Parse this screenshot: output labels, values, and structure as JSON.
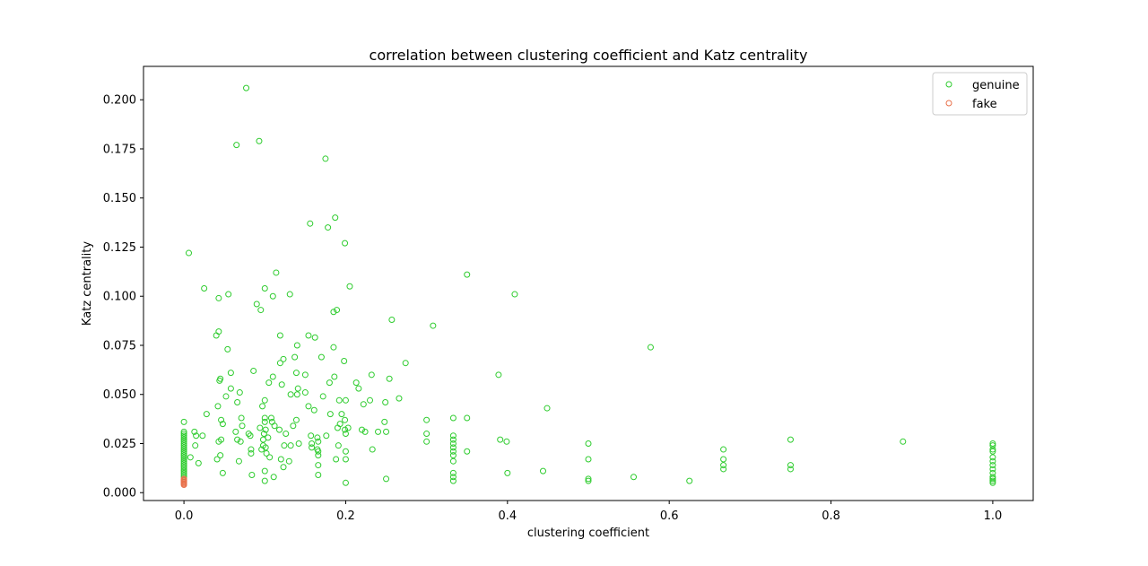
{
  "chart_data": {
    "type": "scatter",
    "title": "correlation between clustering coefficient and Katz centrality",
    "xlabel": "clustering coefficient",
    "ylabel": "Katz centrality",
    "xlim": [
      -0.05,
      1.05
    ],
    "ylim": [
      -0.004,
      0.217
    ],
    "x_ticks": [
      0.0,
      0.2,
      0.4,
      0.6,
      0.8,
      1.0
    ],
    "x_tick_labels": [
      "0.0",
      "0.2",
      "0.4",
      "0.6",
      "0.8",
      "1.0"
    ],
    "y_ticks": [
      0.0,
      0.025,
      0.05,
      0.075,
      0.1,
      0.125,
      0.15,
      0.175,
      0.2
    ],
    "y_tick_labels": [
      "0.000",
      "0.025",
      "0.050",
      "0.075",
      "0.100",
      "0.125",
      "0.150",
      "0.175",
      "0.200"
    ],
    "grid": false,
    "legend_position": "top-right",
    "marker": "hollow-circle",
    "series": [
      {
        "name": "genuine",
        "color": "#2ecc2e",
        "points": [
          [
            0.0,
            0.036
          ],
          [
            0.0,
            0.031
          ],
          [
            0.0,
            0.03
          ],
          [
            0.0,
            0.029
          ],
          [
            0.0,
            0.028
          ],
          [
            0.0,
            0.027
          ],
          [
            0.0,
            0.026
          ],
          [
            0.0,
            0.025
          ],
          [
            0.0,
            0.024
          ],
          [
            0.0,
            0.023
          ],
          [
            0.0,
            0.022
          ],
          [
            0.0,
            0.021
          ],
          [
            0.0,
            0.02
          ],
          [
            0.0,
            0.019
          ],
          [
            0.0,
            0.018
          ],
          [
            0.0,
            0.017
          ],
          [
            0.0,
            0.016
          ],
          [
            0.0,
            0.015
          ],
          [
            0.0,
            0.014
          ],
          [
            0.0,
            0.013
          ],
          [
            0.0,
            0.012
          ],
          [
            0.0,
            0.011
          ],
          [
            0.0,
            0.01
          ],
          [
            0.0,
            0.009
          ],
          [
            0.0,
            0.008
          ],
          [
            0.006,
            0.122
          ],
          [
            0.008,
            0.018
          ],
          [
            0.013,
            0.031
          ],
          [
            0.014,
            0.024
          ],
          [
            0.015,
            0.029
          ],
          [
            0.018,
            0.015
          ],
          [
            0.023,
            0.029
          ],
          [
            0.025,
            0.104
          ],
          [
            0.028,
            0.04
          ],
          [
            0.04,
            0.08
          ],
          [
            0.041,
            0.017
          ],
          [
            0.042,
            0.044
          ],
          [
            0.043,
            0.099
          ],
          [
            0.043,
            0.026
          ],
          [
            0.043,
            0.082
          ],
          [
            0.044,
            0.057
          ],
          [
            0.045,
            0.019
          ],
          [
            0.045,
            0.058
          ],
          [
            0.046,
            0.037
          ],
          [
            0.046,
            0.027
          ],
          [
            0.048,
            0.035
          ],
          [
            0.048,
            0.01
          ],
          [
            0.052,
            0.049
          ],
          [
            0.054,
            0.073
          ],
          [
            0.055,
            0.101
          ],
          [
            0.058,
            0.053
          ],
          [
            0.058,
            0.061
          ],
          [
            0.064,
            0.031
          ],
          [
            0.065,
            0.177
          ],
          [
            0.066,
            0.046
          ],
          [
            0.066,
            0.027
          ],
          [
            0.068,
            0.016
          ],
          [
            0.069,
            0.051
          ],
          [
            0.07,
            0.026
          ],
          [
            0.071,
            0.038
          ],
          [
            0.072,
            0.034
          ],
          [
            0.077,
            0.206
          ],
          [
            0.08,
            0.03
          ],
          [
            0.082,
            0.029
          ],
          [
            0.083,
            0.02
          ],
          [
            0.083,
            0.022
          ],
          [
            0.084,
            0.009
          ],
          [
            0.086,
            0.062
          ],
          [
            0.09,
            0.096
          ],
          [
            0.093,
            0.179
          ],
          [
            0.094,
            0.033
          ],
          [
            0.095,
            0.093
          ],
          [
            0.096,
            0.022
          ],
          [
            0.097,
            0.044
          ],
          [
            0.098,
            0.024
          ],
          [
            0.098,
            0.027
          ],
          [
            0.099,
            0.03
          ],
          [
            0.1,
            0.047
          ],
          [
            0.1,
            0.011
          ],
          [
            0.1,
            0.036
          ],
          [
            0.1,
            0.038
          ],
          [
            0.1,
            0.104
          ],
          [
            0.1,
            0.006
          ],
          [
            0.101,
            0.023
          ],
          [
            0.101,
            0.032
          ],
          [
            0.102,
            0.02
          ],
          [
            0.104,
            0.028
          ],
          [
            0.105,
            0.056
          ],
          [
            0.106,
            0.018
          ],
          [
            0.108,
            0.038
          ],
          [
            0.109,
            0.036
          ],
          [
            0.11,
            0.1
          ],
          [
            0.11,
            0.059
          ],
          [
            0.111,
            0.008
          ],
          [
            0.112,
            0.034
          ],
          [
            0.114,
            0.112
          ],
          [
            0.118,
            0.032
          ],
          [
            0.119,
            0.08
          ],
          [
            0.119,
            0.066
          ],
          [
            0.12,
            0.017
          ],
          [
            0.121,
            0.055
          ],
          [
            0.123,
            0.068
          ],
          [
            0.123,
            0.013
          ],
          [
            0.124,
            0.024
          ],
          [
            0.126,
            0.03
          ],
          [
            0.13,
            0.016
          ],
          [
            0.131,
            0.101
          ],
          [
            0.132,
            0.05
          ],
          [
            0.132,
            0.024
          ],
          [
            0.135,
            0.034
          ],
          [
            0.137,
            0.069
          ],
          [
            0.139,
            0.061
          ],
          [
            0.139,
            0.037
          ],
          [
            0.14,
            0.075
          ],
          [
            0.14,
            0.05
          ],
          [
            0.141,
            0.053
          ],
          [
            0.142,
            0.025
          ],
          [
            0.15,
            0.06
          ],
          [
            0.15,
            0.051
          ],
          [
            0.154,
            0.044
          ],
          [
            0.154,
            0.08
          ],
          [
            0.156,
            0.137
          ],
          [
            0.157,
            0.029
          ],
          [
            0.158,
            0.025
          ],
          [
            0.158,
            0.023
          ],
          [
            0.161,
            0.042
          ],
          [
            0.162,
            0.079
          ],
          [
            0.165,
            0.028
          ],
          [
            0.165,
            0.022
          ],
          [
            0.166,
            0.026
          ],
          [
            0.166,
            0.021
          ],
          [
            0.166,
            0.019
          ],
          [
            0.166,
            0.014
          ],
          [
            0.166,
            0.009
          ],
          [
            0.17,
            0.069
          ],
          [
            0.172,
            0.049
          ],
          [
            0.175,
            0.17
          ],
          [
            0.176,
            0.029
          ],
          [
            0.178,
            0.135
          ],
          [
            0.18,
            0.056
          ],
          [
            0.181,
            0.04
          ],
          [
            0.185,
            0.092
          ],
          [
            0.185,
            0.074
          ],
          [
            0.186,
            0.059
          ],
          [
            0.187,
            0.14
          ],
          [
            0.188,
            0.017
          ],
          [
            0.189,
            0.093
          ],
          [
            0.19,
            0.033
          ],
          [
            0.191,
            0.024
          ],
          [
            0.192,
            0.047
          ],
          [
            0.193,
            0.035
          ],
          [
            0.195,
            0.04
          ],
          [
            0.198,
            0.067
          ],
          [
            0.199,
            0.127
          ],
          [
            0.199,
            0.037
          ],
          [
            0.199,
            0.032
          ],
          [
            0.2,
            0.03
          ],
          [
            0.2,
            0.021
          ],
          [
            0.2,
            0.047
          ],
          [
            0.2,
            0.017
          ],
          [
            0.2,
            0.005
          ],
          [
            0.203,
            0.033
          ],
          [
            0.205,
            0.105
          ],
          [
            0.213,
            0.056
          ],
          [
            0.216,
            0.053
          ],
          [
            0.22,
            0.032
          ],
          [
            0.222,
            0.045
          ],
          [
            0.224,
            0.031
          ],
          [
            0.23,
            0.047
          ],
          [
            0.232,
            0.06
          ],
          [
            0.233,
            0.022
          ],
          [
            0.24,
            0.031
          ],
          [
            0.248,
            0.036
          ],
          [
            0.249,
            0.046
          ],
          [
            0.25,
            0.031
          ],
          [
            0.25,
            0.007
          ],
          [
            0.254,
            0.058
          ],
          [
            0.257,
            0.088
          ],
          [
            0.266,
            0.048
          ],
          [
            0.274,
            0.066
          ],
          [
            0.3,
            0.037
          ],
          [
            0.3,
            0.03
          ],
          [
            0.3,
            0.026
          ],
          [
            0.308,
            0.085
          ],
          [
            0.333,
            0.038
          ],
          [
            0.333,
            0.029
          ],
          [
            0.333,
            0.027
          ],
          [
            0.333,
            0.025
          ],
          [
            0.333,
            0.023
          ],
          [
            0.333,
            0.021
          ],
          [
            0.333,
            0.019
          ],
          [
            0.333,
            0.016
          ],
          [
            0.333,
            0.01
          ],
          [
            0.333,
            0.008
          ],
          [
            0.333,
            0.006
          ],
          [
            0.35,
            0.038
          ],
          [
            0.35,
            0.021
          ],
          [
            0.35,
            0.111
          ],
          [
            0.389,
            0.06
          ],
          [
            0.391,
            0.027
          ],
          [
            0.399,
            0.026
          ],
          [
            0.4,
            0.01
          ],
          [
            0.409,
            0.101
          ],
          [
            0.444,
            0.011
          ],
          [
            0.449,
            0.043
          ],
          [
            0.5,
            0.025
          ],
          [
            0.5,
            0.017
          ],
          [
            0.5,
            0.007
          ],
          [
            0.5,
            0.006
          ],
          [
            0.556,
            0.008
          ],
          [
            0.577,
            0.074
          ],
          [
            0.625,
            0.006
          ],
          [
            0.667,
            0.022
          ],
          [
            0.667,
            0.017
          ],
          [
            0.667,
            0.014
          ],
          [
            0.667,
            0.012
          ],
          [
            0.75,
            0.027
          ],
          [
            0.75,
            0.014
          ],
          [
            0.75,
            0.012
          ],
          [
            0.889,
            0.026
          ],
          [
            1.0,
            0.025
          ],
          [
            1.0,
            0.024
          ],
          [
            1.0,
            0.022
          ],
          [
            1.0,
            0.021
          ],
          [
            1.0,
            0.018
          ],
          [
            1.0,
            0.016
          ],
          [
            1.0,
            0.014
          ],
          [
            1.0,
            0.012
          ],
          [
            1.0,
            0.01
          ],
          [
            1.0,
            0.008
          ],
          [
            1.0,
            0.007
          ],
          [
            1.0,
            0.006
          ],
          [
            1.0,
            0.005
          ]
        ]
      },
      {
        "name": "fake",
        "color": "#e8704a",
        "points": [
          [
            0.0,
            0.007
          ],
          [
            0.0,
            0.0065
          ],
          [
            0.0,
            0.006
          ],
          [
            0.0,
            0.0055
          ],
          [
            0.0,
            0.005
          ],
          [
            0.0,
            0.0045
          ],
          [
            0.0,
            0.004
          ]
        ]
      }
    ]
  }
}
